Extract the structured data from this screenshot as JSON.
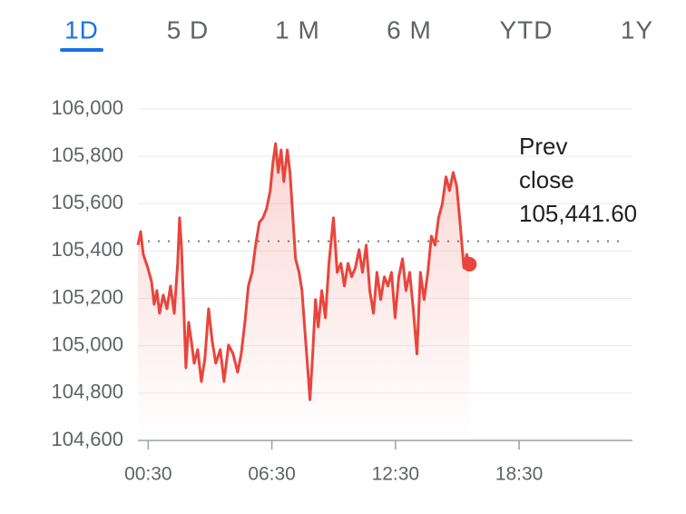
{
  "tabs": [
    "1D",
    "5 D",
    "1 M",
    "6 M",
    "YTD",
    "1Y"
  ],
  "active_tab": 0,
  "chart_data": {
    "type": "line",
    "x": [
      0,
      0.13,
      0.26,
      0.48,
      0.66,
      0.79,
      0.92,
      1.05,
      1.23,
      1.41,
      1.58,
      1.76,
      1.93,
      2.02,
      2.11,
      2.24,
      2.33,
      2.46,
      2.59,
      2.73,
      2.9,
      3.08,
      3.25,
      3.43,
      3.6,
      3.78,
      4.0,
      4.18,
      4.4,
      4.62,
      4.84,
      5.01,
      5.19,
      5.36,
      5.54,
      5.71,
      5.89,
      6.07,
      6.24,
      6.42,
      6.55,
      6.68,
      6.81,
      6.95,
      7.08,
      7.25,
      7.38,
      7.52,
      7.65,
      7.82,
      7.96,
      8.09,
      8.22,
      8.35,
      8.48,
      8.62,
      8.75,
      8.92,
      9.1,
      9.27,
      9.49,
      9.67,
      9.85,
      10.02,
      10.2,
      10.37,
      10.55,
      10.73,
      10.9,
      11.08,
      11.25,
      11.43,
      11.6,
      11.78,
      11.96,
      12.13,
      12.31,
      12.48,
      12.66,
      12.84,
      13.01,
      13.19,
      13.36,
      13.54,
      13.71,
      13.89,
      14.07,
      14.24,
      14.42,
      14.59,
      14.77,
      14.95,
      15.12,
      15.3,
      15.47,
      15.65,
      15.82,
      15.96,
      16.09
    ],
    "values": [
      105425,
      105482,
      105386,
      105329,
      105271,
      105175,
      105233,
      105137,
      105214,
      105156,
      105252,
      105137,
      105348,
      105540,
      105425,
      105118,
      104907,
      105099,
      105022,
      104926,
      104984,
      104849,
      104946,
      105156,
      105022,
      104926,
      104984,
      104849,
      105003,
      104965,
      104888,
      104965,
      105099,
      105252,
      105310,
      105425,
      105521,
      105540,
      105578,
      105655,
      105770,
      105854,
      105732,
      105827,
      105693,
      105827,
      105732,
      105540,
      105367,
      105310,
      105233,
      105079,
      104926,
      104772,
      104965,
      105195,
      105079,
      105233,
      105118,
      105348,
      105540,
      105310,
      105348,
      105252,
      105348,
      105291,
      105329,
      105406,
      105310,
      105425,
      105233,
      105137,
      105310,
      105195,
      105291,
      105252,
      105310,
      105118,
      105291,
      105367,
      105233,
      105310,
      105156,
      104965,
      105310,
      105195,
      105310,
      105463,
      105425,
      105540,
      105598,
      105713,
      105655,
      105732,
      105674,
      105502,
      105329,
      105386,
      105344
    ],
    "color": "#e8453c",
    "xlim": [
      0,
      24
    ],
    "xticks": [
      {
        "value": 0.5,
        "label": "00:30"
      },
      {
        "value": 6.5,
        "label": "06:30"
      },
      {
        "value": 12.5,
        "label": "12:30"
      },
      {
        "value": 18.5,
        "label": "18:30"
      }
    ],
    "ylim": [
      104600,
      106000
    ],
    "yticks": [
      {
        "value": 104600,
        "label": "104,600"
      },
      {
        "value": 104800,
        "label": "104,800"
      },
      {
        "value": 105000,
        "label": "105,000"
      },
      {
        "value": 105200,
        "label": "105,200"
      },
      {
        "value": 105400,
        "label": "105,400"
      },
      {
        "value": 105600,
        "label": "105,600"
      },
      {
        "value": 105800,
        "label": "105,800"
      },
      {
        "value": 106000,
        "label": "106,000"
      }
    ],
    "grid": true,
    "reference_line": {
      "value": 105441.6,
      "label_lines": [
        "Prev",
        "close",
        "105,441.60"
      ]
    }
  }
}
